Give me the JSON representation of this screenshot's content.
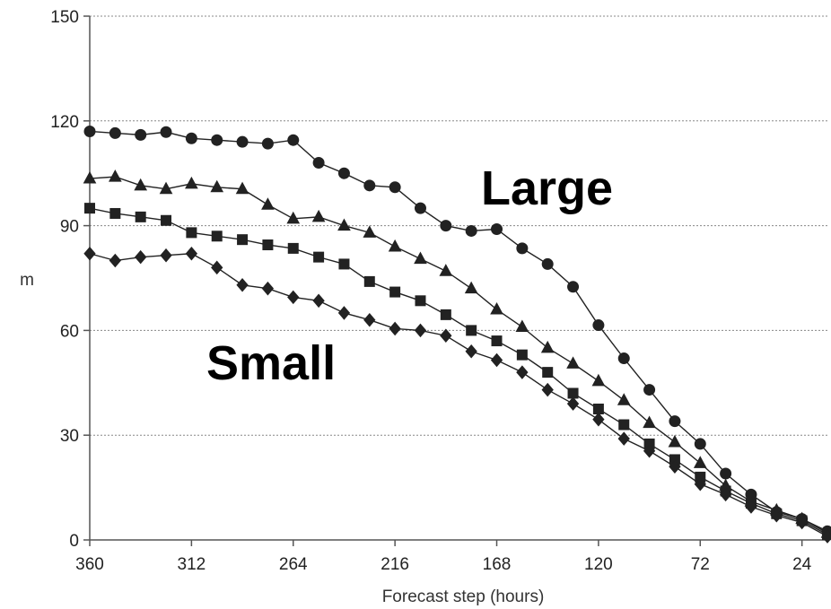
{
  "chart_data": {
    "type": "line",
    "xlabel": "Forecast step (hours)",
    "ylabel": "m",
    "x_ticks": [
      360,
      312,
      264,
      216,
      168,
      120,
      72,
      24
    ],
    "y_ticks": [
      0,
      30,
      60,
      90,
      120,
      150
    ],
    "xlim": [
      360,
      12
    ],
    "ylim": [
      0,
      150
    ],
    "x_reversed": true,
    "grid": "horizontal dotted",
    "annotations": [
      {
        "text": "Large",
        "x": 156,
        "y": 100
      },
      {
        "text": "Small",
        "x": 324,
        "y": 52
      }
    ],
    "x": [
      360,
      348,
      336,
      324,
      312,
      300,
      288,
      276,
      264,
      252,
      240,
      228,
      216,
      204,
      192,
      180,
      168,
      156,
      144,
      132,
      120,
      108,
      96,
      84,
      72,
      60,
      48,
      36,
      24,
      12
    ],
    "series": [
      {
        "marker": "circle",
        "values": [
          117,
          116.5,
          116,
          116.8,
          115,
          114.5,
          114,
          113.5,
          114.5,
          108,
          105,
          101.5,
          101,
          95,
          90,
          88.5,
          89,
          83.5,
          79,
          72.5,
          61.5,
          52,
          43,
          34,
          27.5,
          19,
          13,
          8,
          6,
          2.5
        ]
      },
      {
        "marker": "triangle",
        "values": [
          103.5,
          104,
          101.5,
          100.5,
          102,
          101,
          100.5,
          96,
          92,
          92.5,
          90,
          88,
          84,
          80.5,
          77,
          72,
          66,
          61,
          55,
          50.5,
          45.5,
          40,
          33.5,
          28,
          22,
          15.5,
          11,
          8.5,
          6,
          2
        ]
      },
      {
        "marker": "square",
        "values": [
          95,
          93.5,
          92.5,
          91.5,
          88,
          87,
          86,
          84.5,
          83.5,
          81,
          79,
          74,
          71,
          68.5,
          64.5,
          60,
          57,
          53,
          48,
          42,
          37.5,
          33,
          27.5,
          23,
          18,
          14,
          10.5,
          7.5,
          5.5,
          1.5
        ]
      },
      {
        "marker": "diamond",
        "values": [
          82,
          80,
          81,
          81.5,
          82,
          78,
          73,
          72,
          69.5,
          68.5,
          65,
          63,
          60.5,
          60,
          58.5,
          54,
          51.5,
          48,
          43,
          39,
          34.5,
          29,
          25.5,
          21,
          16,
          13,
          9.5,
          7,
          5,
          1
        ]
      }
    ]
  }
}
